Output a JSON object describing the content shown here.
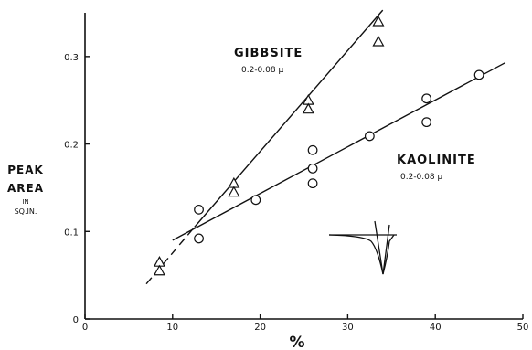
{
  "chart_data": {
    "type": "scatter",
    "xlabel": "%",
    "ylabel_lines": [
      "PEAK",
      "AREA",
      "IN",
      "SQ.IN."
    ],
    "xlim": [
      0,
      50
    ],
    "ylim": [
      0,
      0.35
    ],
    "x_ticks": [
      0,
      10,
      20,
      30,
      40,
      50
    ],
    "x_tick_labels": [
      "0",
      "10",
      "20",
      "30",
      "40",
      "50"
    ],
    "y_ticks": [
      0,
      0.1,
      0.2,
      0.3
    ],
    "y_tick_labels": [
      "0",
      "0.1",
      "0.2",
      "0.3"
    ],
    "grid": false,
    "series": [
      {
        "name": "GIBBSITE",
        "sublabel": "0.2-0.08 µ",
        "marker": "triangle",
        "points": [
          {
            "x": 8.5,
            "y": 0.065
          },
          {
            "x": 8.5,
            "y": 0.055
          },
          {
            "x": 17,
            "y": 0.155
          },
          {
            "x": 17,
            "y": 0.145
          },
          {
            "x": 25.5,
            "y": 0.25
          },
          {
            "x": 25.5,
            "y": 0.24
          },
          {
            "x": 33.5,
            "y": 0.34
          },
          {
            "x": 33.5,
            "y": 0.317
          }
        ],
        "fit_line": [
          {
            "x": 12.5,
            "y": 0.105
          },
          {
            "x": 34,
            "y": 0.353
          }
        ],
        "fit_line_dashed": [
          {
            "x": 7,
            "y": 0.04
          },
          {
            "x": 12.5,
            "y": 0.105
          }
        ]
      },
      {
        "name": "KAOLINITE",
        "sublabel": "0.2-0.08 µ",
        "marker": "circle",
        "points": [
          {
            "x": 13,
            "y": 0.125
          },
          {
            "x": 13,
            "y": 0.092
          },
          {
            "x": 19.5,
            "y": 0.136
          },
          {
            "x": 26,
            "y": 0.193
          },
          {
            "x": 26,
            "y": 0.172
          },
          {
            "x": 26,
            "y": 0.155
          },
          {
            "x": 32.5,
            "y": 0.209
          },
          {
            "x": 39,
            "y": 0.252
          },
          {
            "x": 39,
            "y": 0.225
          },
          {
            "x": 45,
            "y": 0.279
          }
        ],
        "fit_line": [
          {
            "x": 10,
            "y": 0.09
          },
          {
            "x": 48,
            "y": 0.293
          }
        ]
      }
    ]
  }
}
